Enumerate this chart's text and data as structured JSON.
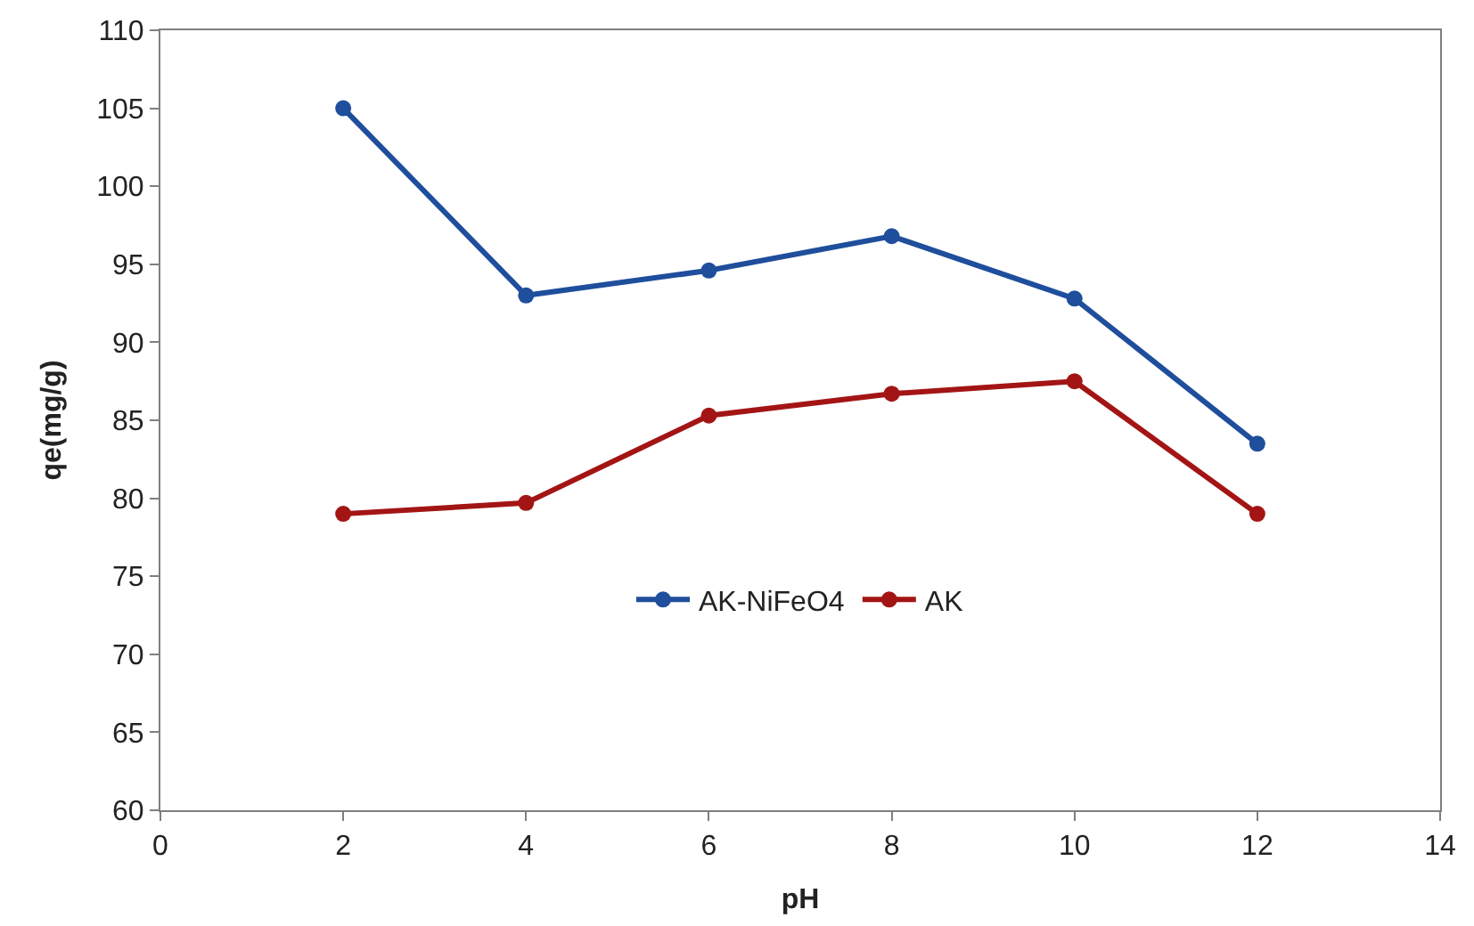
{
  "chart_data": {
    "type": "line",
    "xlabel": "pH",
    "ylabel": "qe(mg/g)",
    "x": [
      2,
      4,
      6,
      8,
      10,
      12
    ],
    "series": [
      {
        "name": "AK-NiFeO4",
        "color": "#1f4e9c",
        "values": [
          105,
          93,
          94.6,
          96.8,
          92.8,
          83.5
        ]
      },
      {
        "name": "AK",
        "color": "#a31515",
        "values": [
          79,
          79.7,
          85.3,
          86.7,
          87.5,
          79
        ]
      }
    ],
    "xlim": [
      0,
      14
    ],
    "xticks": [
      0,
      2,
      4,
      6,
      8,
      10,
      12,
      14
    ],
    "ylim": [
      60,
      110
    ],
    "yticks": [
      60,
      65,
      70,
      75,
      80,
      85,
      90,
      95,
      100,
      105,
      110
    ],
    "legend": "bottom",
    "marker": "circle",
    "line_style": "solid"
  }
}
